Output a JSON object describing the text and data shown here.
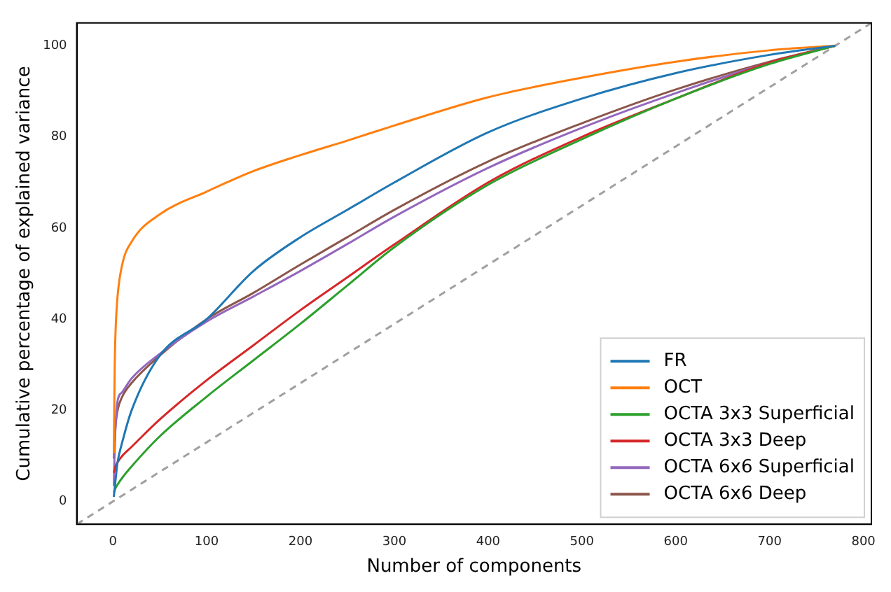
{
  "chart_data": {
    "type": "line",
    "xlabel": "Number of components",
    "ylabel": "Cumulative percentage of explained variance",
    "x": [
      1,
      2,
      3,
      5,
      10,
      20,
      50,
      100,
      150,
      200,
      250,
      300,
      400,
      500,
      600,
      700,
      770
    ],
    "xlim": [
      -38.5,
      808.5
    ],
    "xticks": [
      0,
      100,
      200,
      300,
      400,
      500,
      600,
      700,
      800
    ],
    "ylim": [
      -5,
      105
    ],
    "yticks": [
      0,
      20,
      40,
      60,
      80,
      100
    ],
    "grid": false,
    "legend": "bottom right",
    "marker": "none",
    "series": [
      {
        "name": "FR",
        "color": "#1f77b4",
        "values": [
          1,
          3,
          5,
          8.6,
          13,
          20,
          32,
          40,
          50.6,
          58,
          64,
          70,
          81,
          88.4,
          94,
          98,
          100
        ]
      },
      {
        "name": "OCT",
        "color": "#ff7f0e",
        "values": [
          10.6,
          30,
          38,
          45,
          52,
          57,
          63,
          68,
          72.5,
          76,
          79.2,
          82.5,
          88.7,
          93,
          96.5,
          99,
          100
        ]
      },
      {
        "name": "OCTA 3x3 Superficial",
        "color": "#2ca02c",
        "values": [
          2,
          2.5,
          3,
          3.7,
          5.2,
          7.7,
          14.3,
          23,
          31,
          39,
          47.4,
          55.8,
          69.5,
          79.5,
          88.4,
          96,
          100
        ]
      },
      {
        "name": "OCTA 3x3 Deep",
        "color": "#d62728",
        "values": [
          6.3,
          7,
          7.8,
          8.6,
          10,
          12,
          18,
          26.6,
          34.3,
          42,
          49.2,
          56.4,
          70,
          80,
          88.4,
          96.3,
          100
        ]
      },
      {
        "name": "OCTA 6x6 Superficial",
        "color": "#9467bd",
        "values": [
          3.4,
          12,
          17,
          22,
          24,
          27,
          32.4,
          39.5,
          45,
          50.6,
          56.5,
          62.5,
          73.2,
          82,
          89.6,
          96.3,
          100
        ]
      },
      {
        "name": "OCTA 6x6 Deep",
        "color": "#8c564b",
        "values": [
          9.4,
          14,
          17,
          20,
          23,
          26,
          32,
          40,
          45.8,
          52,
          58,
          64,
          74.6,
          83,
          90.4,
          96.5,
          100
        ]
      },
      {
        "color": "#a0a0a0",
        "line_style": "dashed",
        "x": [
          -38.5,
          808.5
        ],
        "values": [
          -5,
          105
        ]
      }
    ]
  }
}
